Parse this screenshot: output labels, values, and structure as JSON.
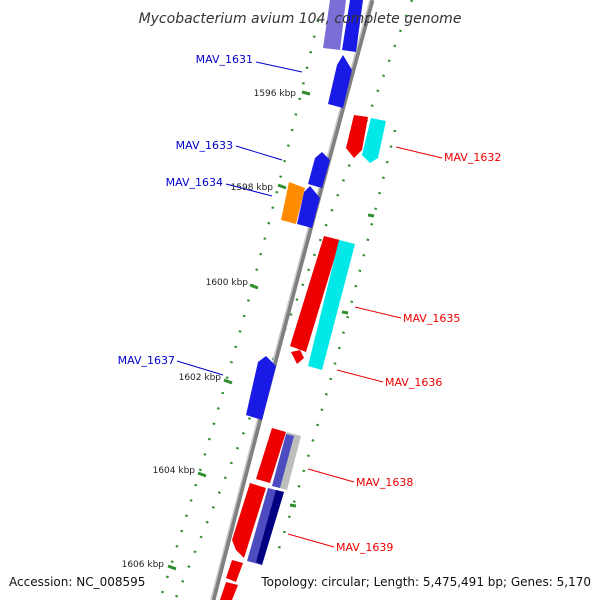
{
  "title": "Mycobacterium avium 104, complete genome",
  "footer": {
    "accession": "Accession: NC_008595",
    "topology": "Topology: circular; Length: 5,475,491 bp; Genes: 5,170"
  },
  "colors": {
    "backbone": "#888888",
    "tick": "#2f8f2f",
    "forward_label": "#0000cc",
    "reverse_label": "#ee0000"
  },
  "ticks": [
    {
      "label": "1596 kbp"
    },
    {
      "label": "1598 kbp"
    },
    {
      "label": "1600 kbp"
    },
    {
      "label": "1602 kbp"
    },
    {
      "label": "1604 kbp"
    },
    {
      "label": "1606 kbp"
    }
  ],
  "gene_labels": [
    {
      "label": "MAV_1631",
      "strand": "forward"
    },
    {
      "label": "MAV_1632",
      "strand": "reverse"
    },
    {
      "label": "MAV_1633",
      "strand": "forward"
    },
    {
      "label": "MAV_1634",
      "strand": "forward"
    },
    {
      "label": "MAV_1635",
      "strand": "reverse"
    },
    {
      "label": "MAV_1636",
      "strand": "reverse"
    },
    {
      "label": "MAV_1637",
      "strand": "forward"
    },
    {
      "label": "MAV_1638",
      "strand": "reverse"
    },
    {
      "label": "MAV_1639",
      "strand": "reverse"
    }
  ]
}
